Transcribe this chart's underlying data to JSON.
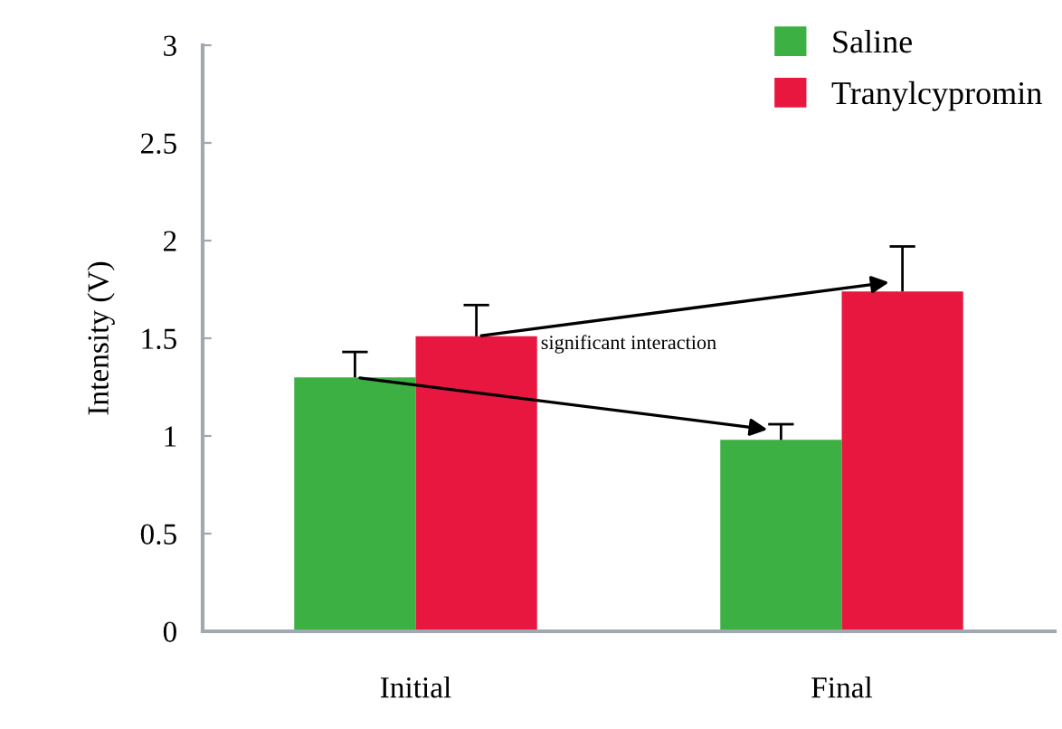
{
  "chart_data": {
    "type": "bar",
    "ylabel": "Intensity (V)",
    "categories": [
      "Initial",
      "Final"
    ],
    "series": [
      {
        "name": "Saline",
        "color": "#3cb043",
        "values": [
          1.3,
          0.98
        ],
        "errors": [
          [
            1.3,
            1.43
          ],
          [
            0.98,
            1.06
          ]
        ]
      },
      {
        "name": "Tranylcypromin",
        "color": "#e8173f",
        "values": [
          1.51,
          1.74
        ],
        "errors": [
          [
            1.51,
            1.67
          ],
          [
            1.74,
            1.97
          ]
        ]
      }
    ],
    "ylim": [
      0,
      3
    ],
    "yticks": [
      0,
      0.5,
      1,
      1.5,
      2,
      2.5,
      3
    ],
    "annotations": [
      "significant interaction"
    ],
    "legend": "top right",
    "grid": false
  }
}
